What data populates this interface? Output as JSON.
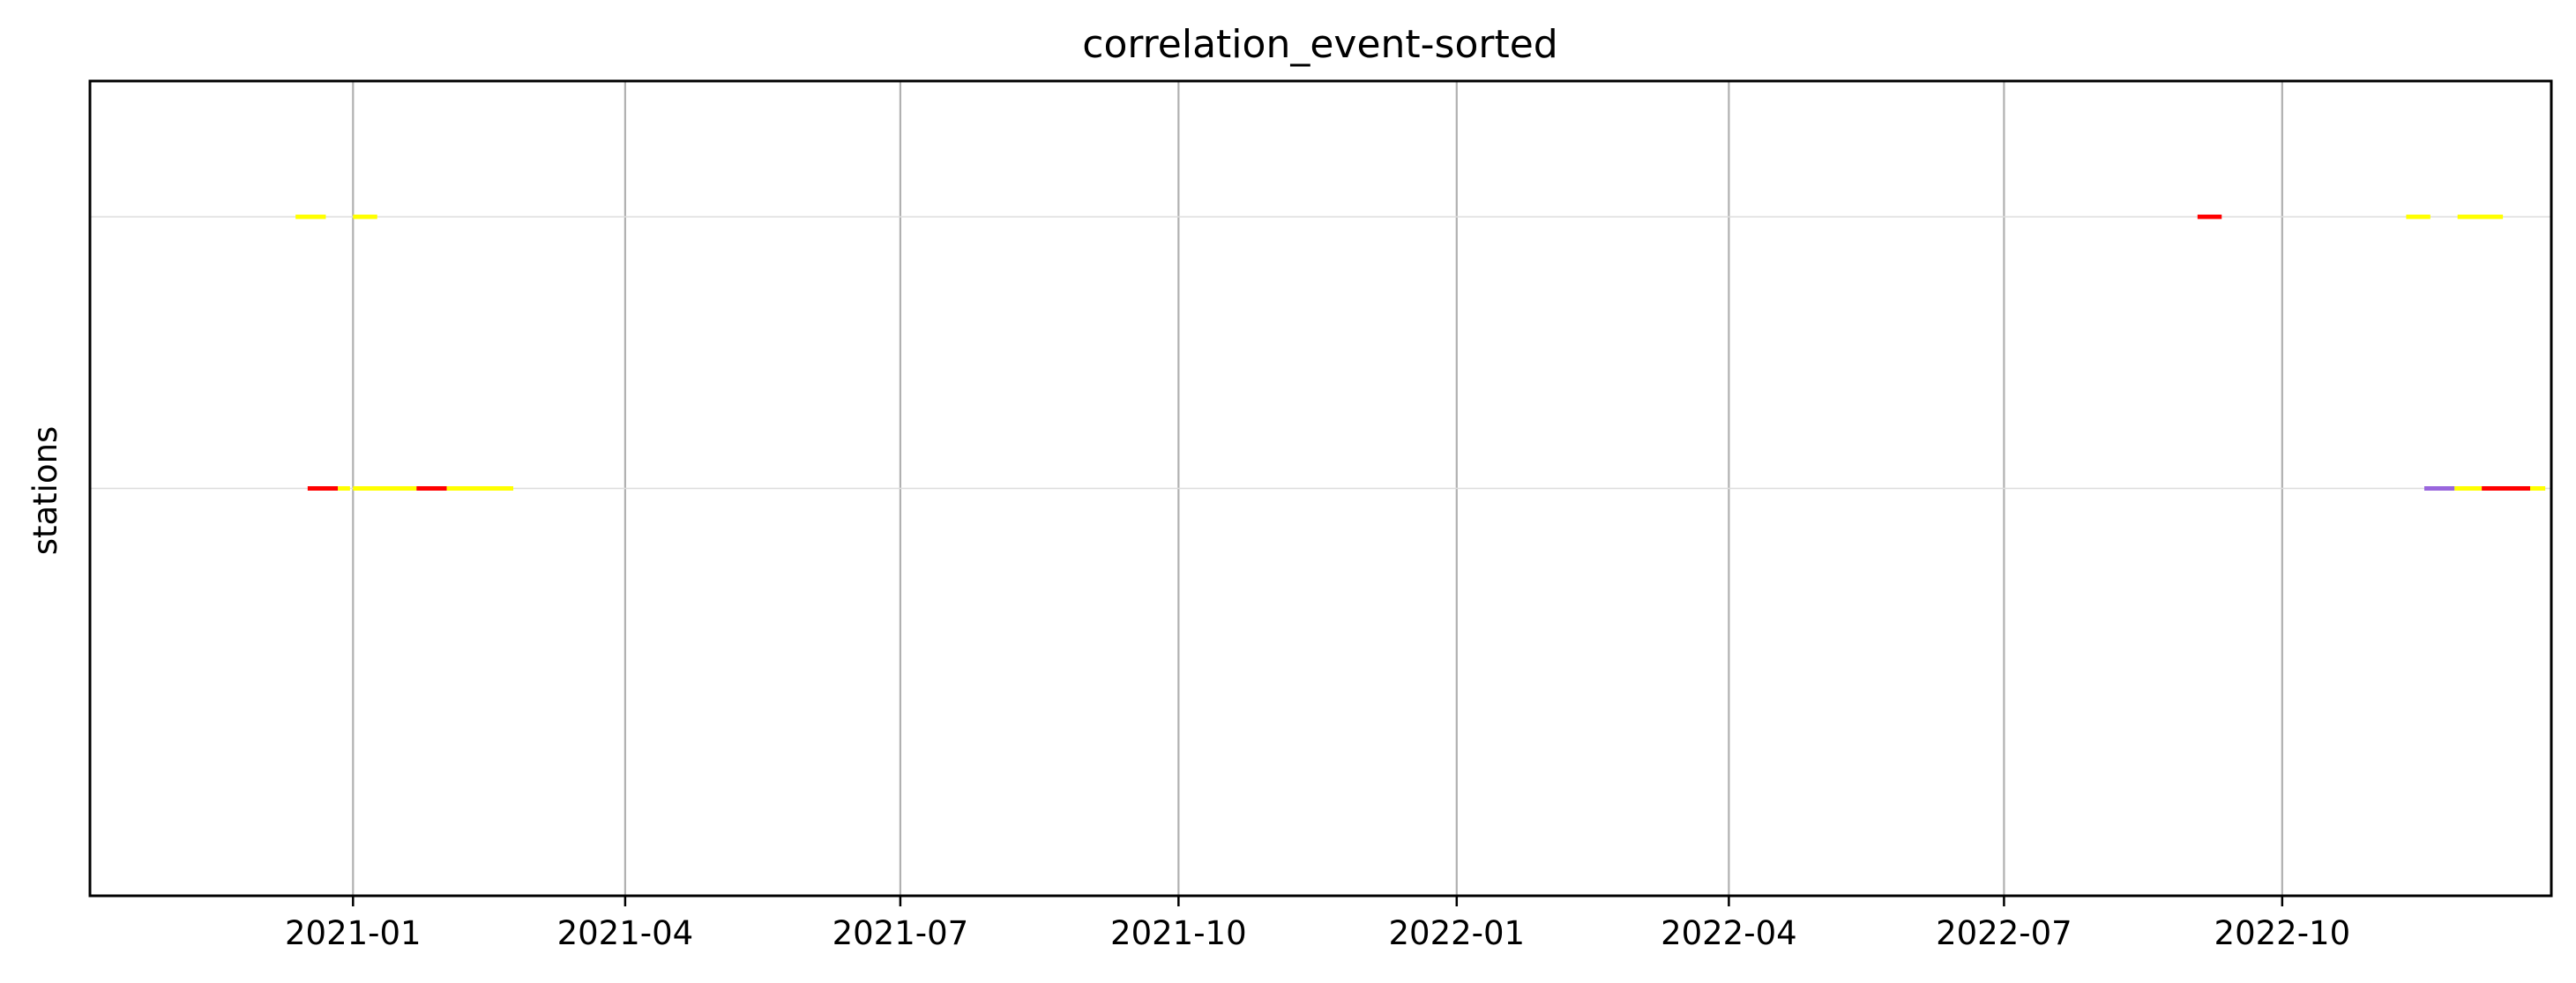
{
  "chart_data": {
    "type": "timeline",
    "title": "correlation_event-sorted",
    "xlabel": "",
    "ylabel": "stations",
    "x_axis_type": "date",
    "xlim": [
      "2020-10-06",
      "2022-12-29"
    ],
    "ylim": [
      -0.5,
      2.5
    ],
    "x_ticks": [
      "2021-01",
      "2021-04",
      "2021-07",
      "2021-10",
      "2022-01",
      "2022-04",
      "2022-07",
      "2022-10"
    ],
    "vertical_grid": true,
    "station_rows": [
      1,
      2
    ],
    "row_gridlines": true,
    "segments": [
      {
        "row": 2,
        "start": "2020-12-13",
        "end": "2020-12-23",
        "color": "#ffff00"
      },
      {
        "row": 2,
        "start": "2021-01-01",
        "end": "2021-01-09",
        "color": "#ffff00"
      },
      {
        "row": 2,
        "start": "2022-09-03",
        "end": "2022-09-11",
        "color": "#ff0000"
      },
      {
        "row": 2,
        "start": "2022-11-11",
        "end": "2022-11-19",
        "color": "#ffff00"
      },
      {
        "row": 2,
        "start": "2022-11-28",
        "end": "2022-12-13",
        "color": "#ffff00"
      },
      {
        "row": 1,
        "start": "2020-12-17",
        "end": "2020-12-27",
        "color": "#ff0000"
      },
      {
        "row": 1,
        "start": "2020-12-27",
        "end": "2020-12-31",
        "color": "#ffff00"
      },
      {
        "row": 1,
        "start": "2021-01-01",
        "end": "2021-01-22",
        "color": "#ffff00"
      },
      {
        "row": 1,
        "start": "2021-01-22",
        "end": "2021-02-01",
        "color": "#ff0000"
      },
      {
        "row": 1,
        "start": "2021-02-01",
        "end": "2021-02-23",
        "color": "#ffff00"
      },
      {
        "row": 1,
        "start": "2022-11-17",
        "end": "2022-11-27",
        "color": "#9966dd"
      },
      {
        "row": 1,
        "start": "2022-11-27",
        "end": "2022-12-06",
        "color": "#ffff00"
      },
      {
        "row": 1,
        "start": "2022-12-06",
        "end": "2022-12-22",
        "color": "#ff0000"
      },
      {
        "row": 1,
        "start": "2022-12-22",
        "end": "2022-12-27",
        "color": "#ffff00"
      }
    ],
    "colors": {
      "grid": "#b0b0b0",
      "row_grid": "#dddddd",
      "axes": "#000000"
    }
  }
}
